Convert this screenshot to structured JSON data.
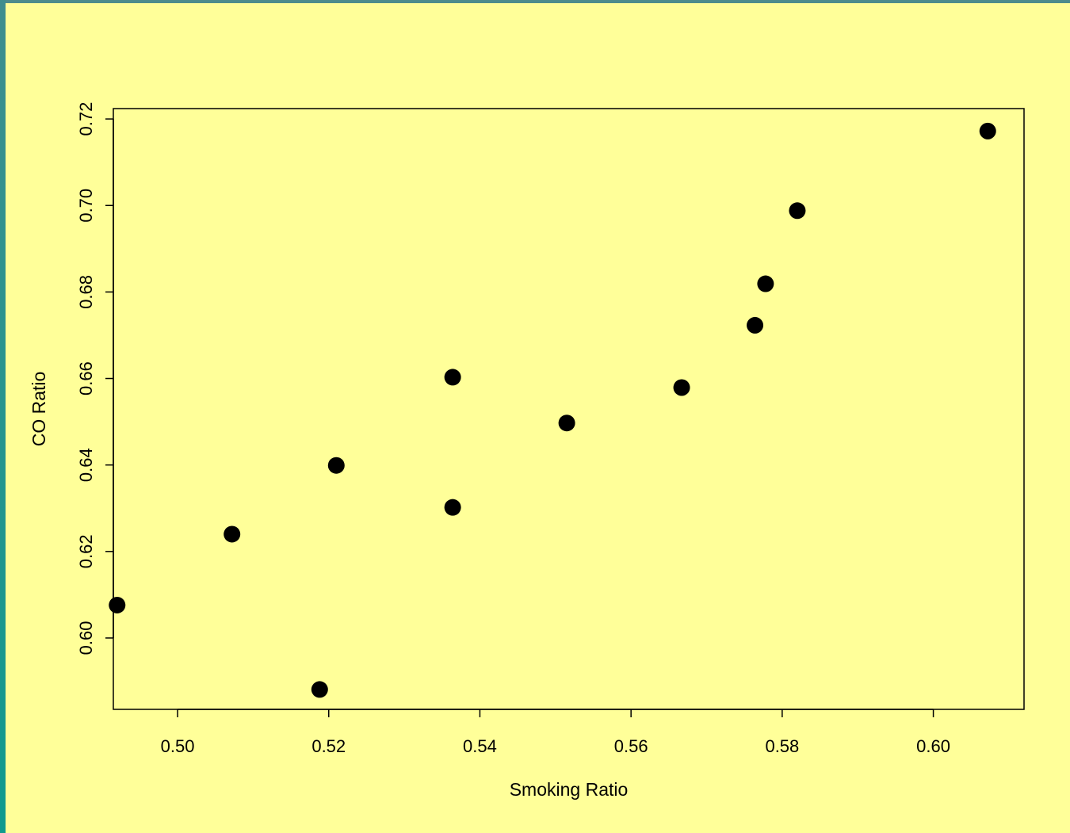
{
  "chart_data": {
    "type": "scatter",
    "title": "",
    "xlabel": "Smoking Ratio",
    "ylabel": "CO Ratio",
    "xlim": [
      0.4915,
      0.612
    ],
    "ylim": [
      0.5835,
      0.7224
    ],
    "x_ticks": [
      0.5,
      0.52,
      0.54,
      0.56,
      0.58,
      0.6
    ],
    "x_tick_labels": [
      "0.50",
      "0.52",
      "0.54",
      "0.56",
      "0.58",
      "0.60"
    ],
    "y_ticks": [
      0.6,
      0.62,
      0.64,
      0.66,
      0.68,
      0.7,
      0.72
    ],
    "y_tick_labels": [
      "0.60",
      "0.62",
      "0.64",
      "0.66",
      "0.68",
      "0.70",
      "0.72"
    ],
    "grid": false,
    "legend": "none",
    "marker_color": "#000000",
    "background_color": "#FFFF99",
    "series": [
      {
        "x": [
          0.492,
          0.5072,
          0.5188,
          0.521,
          0.5364,
          0.5364,
          0.5515,
          0.5667,
          0.5764,
          0.5778,
          0.582,
          0.6072
        ],
        "y": [
          0.6076,
          0.624,
          0.5881,
          0.6399,
          0.6302,
          0.6603,
          0.6497,
          0.6579,
          0.6723,
          0.6819,
          0.6988,
          0.7172
        ]
      }
    ]
  }
}
